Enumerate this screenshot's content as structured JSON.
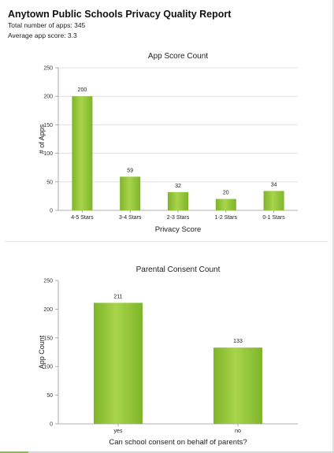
{
  "report": {
    "title": "Anytown Public Schools Privacy Quality Report",
    "total_apps": "Total number of apps: 345",
    "average_score": "Average app score: 3.3"
  },
  "colors": {
    "bar_top": "#a8d44a",
    "bar_bottom": "#7fb52a",
    "grid": "#d9d9d9",
    "axis": "#999999"
  },
  "chart_data": [
    {
      "type": "bar",
      "title": "App Score Count",
      "xlabel": "Privacy Score",
      "ylabel": "# of Apps",
      "categories": [
        "4-5 Stars",
        "3-4 Stars",
        "2-3 Stars",
        "1-2 Stars",
        "0-1 Stars"
      ],
      "values": [
        200,
        59,
        32,
        20,
        34
      ],
      "ylim": [
        0,
        250
      ],
      "yticks": [
        0,
        50,
        100,
        150,
        200,
        250
      ],
      "grid": true,
      "data_labels": true
    },
    {
      "type": "bar",
      "title": "Parental Consent Count",
      "xlabel": "Can school consent on behalf of parents?",
      "ylabel": "App Count",
      "categories": [
        "yes",
        "no"
      ],
      "values": [
        211,
        133
      ],
      "ylim": [
        0,
        250
      ],
      "yticks": [
        0,
        50,
        100,
        150,
        200,
        250
      ],
      "grid": false,
      "data_labels": true
    }
  ]
}
